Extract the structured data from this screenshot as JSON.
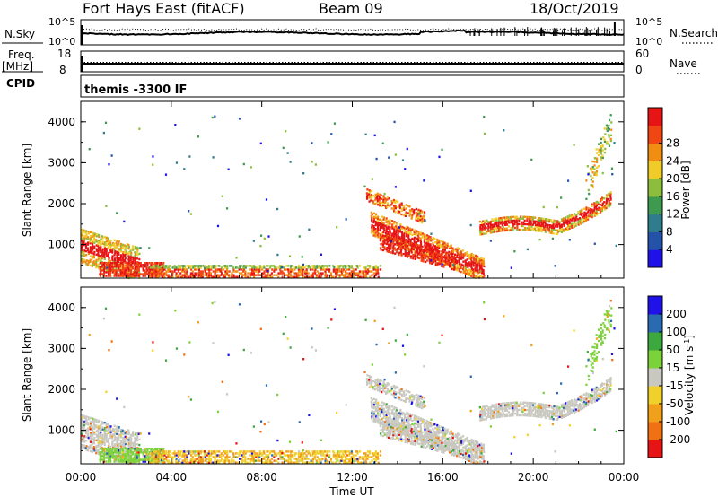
{
  "header": {
    "station": "Fort Hays East (fitACF)",
    "beam": "Beam 09",
    "date": "18/Oct/2019"
  },
  "top_panels": {
    "nsky": {
      "left_label": "N.Sky",
      "right_label": "N.Search",
      "left_ticks": [
        "10^5",
        "10^0"
      ],
      "right_ticks": [
        "10^5",
        "10^0"
      ]
    },
    "freq": {
      "left_label_1": "Freq.",
      "left_label_2": "[MHz]",
      "right_label": "Nave",
      "left_ticks": [
        "18",
        "8"
      ],
      "right_ticks": [
        "60",
        "0"
      ]
    },
    "cpid": {
      "label": "CPID",
      "value": "themis -3300 IF"
    }
  },
  "chart_data": [
    {
      "type": "heatmap",
      "name": "power",
      "ylabel": "Slant Range [km]",
      "xlabel": "Time UT",
      "ylim": [
        180,
        4500
      ],
      "yticks": [
        1000,
        2000,
        3000,
        4000
      ],
      "xticks": [
        "00:00",
        "04:00",
        "08:00",
        "12:00",
        "16:00",
        "20:00",
        "00:00"
      ],
      "colorbar": {
        "label": "Power [dB]",
        "ticks": [
          "4",
          "8",
          "12",
          "16",
          "20",
          "24",
          "28"
        ],
        "colors": [
          "#1e12e8",
          "#2452a8",
          "#2f7c8c",
          "#3d9a4e",
          "#8cbd3c",
          "#f0cc2a",
          "#f08e14",
          "#f04614",
          "#e61414"
        ]
      },
      "echo_regions": [
        {
          "t": [
            0.0,
            2.8
          ],
          "r": [
            280,
            1650
          ],
          "desc": "morning band"
        },
        {
          "t": [
            0.3,
            3.5
          ],
          "r": [
            280,
            700
          ]
        },
        {
          "t": [
            3.0,
            13.0
          ],
          "r": [
            280,
            600
          ]
        },
        {
          "t": [
            12.5,
            19.5
          ],
          "r": [
            400,
            1600
          ]
        },
        {
          "t": [
            12.7,
            18.0
          ],
          "r": [
            1700,
            2500
          ]
        },
        {
          "t": [
            17.8,
            23.5
          ],
          "r": [
            1200,
            2400
          ]
        },
        {
          "t": [
            22.2,
            23.5
          ],
          "r": [
            2500,
            4400
          ]
        }
      ]
    },
    {
      "type": "heatmap",
      "name": "velocity",
      "ylabel": "Slant Range [km]",
      "xlabel": "Time UT",
      "ylim": [
        180,
        4500
      ],
      "yticks": [
        1000,
        2000,
        3000,
        4000
      ],
      "xticks": [
        "00:00",
        "04:00",
        "08:00",
        "12:00",
        "16:00",
        "20:00",
        "00:00"
      ],
      "colorbar": {
        "label": "Velocity [m s^-1]",
        "ticks": [
          "200",
          "100",
          "50",
          "15",
          "-15",
          "-50",
          "-100",
          "-200"
        ],
        "colors": [
          "#1e12e8",
          "#2a6ab0",
          "#3da83d",
          "#7cd23a",
          "#c8c8c0",
          "#f0d02a",
          "#f0a01a",
          "#f07014",
          "#e61414"
        ]
      }
    }
  ],
  "colors": {
    "ground_scatter": "#c8c8c0"
  }
}
